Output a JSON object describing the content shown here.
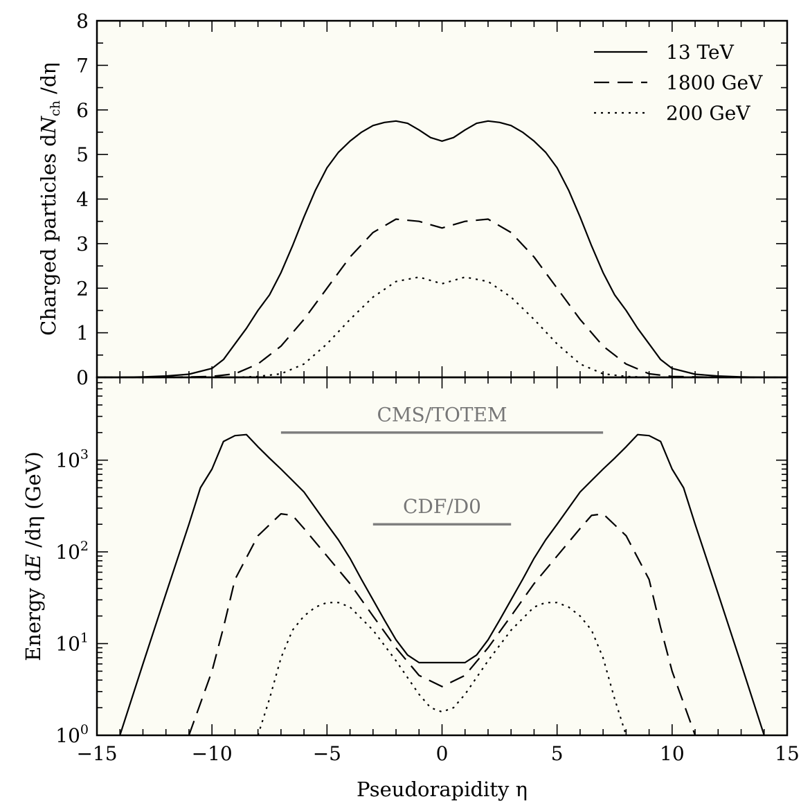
{
  "chart_data": [
    {
      "type": "line",
      "panel": "top",
      "ylabel_main": "Charged particles d",
      "ylabel_var": "N",
      "ylabel_sub": "ch",
      "ylabel_tail": " /dη",
      "xlim": [
        -15,
        15
      ],
      "ylim": [
        0,
        8
      ],
      "yticks": [
        0,
        1,
        2,
        3,
        4,
        5,
        6,
        7,
        8
      ],
      "series": [
        {
          "name": "13 TeV",
          "x": [
            -15,
            -14,
            -13,
            -12,
            -11,
            -10,
            -9.5,
            -9,
            -8.5,
            -8,
            -7.5,
            -7,
            -6.5,
            -6,
            -5.5,
            -5,
            -4.5,
            -4,
            -3.5,
            -3,
            -2.5,
            -2,
            -1.5,
            -1,
            -0.5,
            0,
            0.5,
            1,
            1.5,
            2,
            2.5,
            3,
            3.5,
            4,
            4.5,
            5,
            5.5,
            6,
            6.5,
            7,
            7.5,
            8,
            8.5,
            9,
            9.5,
            10,
            11,
            12,
            13,
            14,
            15
          ],
          "y": [
            0,
            0,
            0.01,
            0.03,
            0.07,
            0.2,
            0.4,
            0.75,
            1.1,
            1.5,
            1.85,
            2.35,
            2.95,
            3.6,
            4.2,
            4.7,
            5.05,
            5.3,
            5.5,
            5.65,
            5.72,
            5.75,
            5.7,
            5.55,
            5.38,
            5.3,
            5.38,
            5.55,
            5.7,
            5.75,
            5.72,
            5.65,
            5.5,
            5.3,
            5.05,
            4.7,
            4.2,
            3.6,
            2.95,
            2.35,
            1.85,
            1.5,
            1.1,
            0.75,
            0.4,
            0.2,
            0.07,
            0.03,
            0.01,
            0,
            0
          ]
        },
        {
          "name": "1800 GeV",
          "x": [
            -15,
            -12,
            -10,
            -9,
            -8,
            -7,
            -6,
            -5,
            -4,
            -3,
            -2,
            -1,
            0,
            1,
            2,
            3,
            4,
            5,
            6,
            7,
            8,
            9,
            10,
            12,
            15
          ],
          "y": [
            0,
            0,
            0.02,
            0.08,
            0.3,
            0.7,
            1.3,
            2.0,
            2.7,
            3.25,
            3.55,
            3.5,
            3.35,
            3.5,
            3.55,
            3.25,
            2.7,
            2.0,
            1.3,
            0.7,
            0.3,
            0.08,
            0.02,
            0,
            0
          ]
        },
        {
          "name": "200 GeV",
          "x": [
            -15,
            -9,
            -8,
            -7,
            -6,
            -5,
            -4,
            -3,
            -2,
            -1,
            0,
            1,
            2,
            3,
            4,
            5,
            6,
            7,
            8,
            9,
            15
          ],
          "y": [
            0,
            0,
            0.02,
            0.08,
            0.3,
            0.75,
            1.3,
            1.8,
            2.15,
            2.25,
            2.1,
            2.25,
            2.15,
            1.8,
            1.3,
            0.75,
            0.3,
            0.08,
            0.02,
            0,
            0
          ]
        }
      ]
    },
    {
      "type": "line",
      "panel": "bottom",
      "yscale": "log",
      "ylabel_main": "Energy d",
      "ylabel_var": "E",
      "ylabel_tail": " /dη (GeV)",
      "xlabel": "Pseudorapidity η",
      "xlim": [
        -15,
        15
      ],
      "ylim": [
        1,
        8000
      ],
      "xticks": [
        -15,
        -10,
        -5,
        0,
        5,
        10,
        15
      ],
      "xtick_labels": [
        "−15",
        "−10",
        "−5",
        "0",
        "5",
        "10",
        "15"
      ],
      "yticks": [
        1,
        10,
        100,
        1000
      ],
      "ytick_labels": [
        {
          "base": "10",
          "exp": "0"
        },
        {
          "base": "10",
          "exp": "1"
        },
        {
          "base": "10",
          "exp": "2"
        },
        {
          "base": "10",
          "exp": "3"
        }
      ],
      "series": [
        {
          "name": "13 TeV",
          "x": [
            -14,
            -13,
            -12,
            -11,
            -10.5,
            -10,
            -9.5,
            -9,
            -8.5,
            -8,
            -7.5,
            -7,
            -6.5,
            -6,
            -5.5,
            -5,
            -4.5,
            -4,
            -3.5,
            -3,
            -2.5,
            -2,
            -1.5,
            -1,
            -0.5,
            0,
            0.5,
            1,
            1.5,
            2,
            2.5,
            3,
            3.5,
            4,
            4.5,
            5,
            5.5,
            6,
            6.5,
            7,
            7.5,
            8,
            8.5,
            9,
            9.5,
            10,
            10.5,
            11,
            12,
            13,
            14
          ],
          "y": [
            1,
            6,
            35,
            200,
            500,
            800,
            1600,
            1850,
            1900,
            1400,
            1050,
            800,
            600,
            450,
            300,
            200,
            135,
            85,
            50,
            30,
            18,
            11,
            7.5,
            6.2,
            6.2,
            6.2,
            6.2,
            6.2,
            7.5,
            11,
            18,
            30,
            50,
            85,
            135,
            200,
            300,
            450,
            600,
            800,
            1050,
            1400,
            1900,
            1850,
            1600,
            800,
            500,
            200,
            35,
            6,
            1
          ]
        },
        {
          "name": "1800 GeV",
          "x": [
            -11,
            -10,
            -9.5,
            -9,
            -8,
            -7,
            -6.5,
            -6,
            -5,
            -4,
            -3,
            -2,
            -1,
            0,
            1,
            2,
            3,
            4,
            5,
            6,
            6.5,
            7,
            8,
            9,
            9.5,
            10,
            11
          ],
          "y": [
            1,
            5,
            15,
            50,
            150,
            260,
            250,
            180,
            90,
            45,
            20,
            9,
            4.5,
            3.4,
            4.5,
            9,
            20,
            45,
            90,
            180,
            250,
            260,
            150,
            50,
            15,
            5,
            1
          ]
        },
        {
          "name": "200 GeV",
          "x": [
            -8,
            -7.5,
            -7,
            -6.5,
            -6,
            -5.5,
            -5,
            -4.5,
            -4,
            -3,
            -2,
            -1,
            -0.5,
            0,
            0.5,
            1,
            2,
            3,
            4,
            4.5,
            5,
            5.5,
            6,
            6.5,
            7,
            7.5,
            8
          ],
          "y": [
            1,
            2.5,
            7,
            14,
            20,
            25,
            28,
            28,
            25,
            14,
            6.5,
            2.8,
            2.0,
            1.8,
            2.0,
            2.8,
            6.5,
            14,
            25,
            28,
            28,
            25,
            20,
            14,
            7,
            2.5,
            1
          ]
        }
      ],
      "annotations": [
        {
          "label": "CMS/TOTEM",
          "x_range": [
            -7,
            7
          ],
          "y": 2000
        },
        {
          "label": "CDF/D0",
          "x_range": [
            -3,
            3
          ],
          "y": 200
        }
      ]
    }
  ],
  "legend": {
    "placement": "top-right",
    "items": [
      {
        "label": "13 TeV",
        "style": "solid"
      },
      {
        "label": "1800 GeV",
        "style": "dashed"
      },
      {
        "label": "200 GeV",
        "style": "dotted"
      }
    ]
  },
  "colors": {
    "background": "#fcfcf4",
    "line": "#000000",
    "annotation": "#7f7f7f"
  }
}
